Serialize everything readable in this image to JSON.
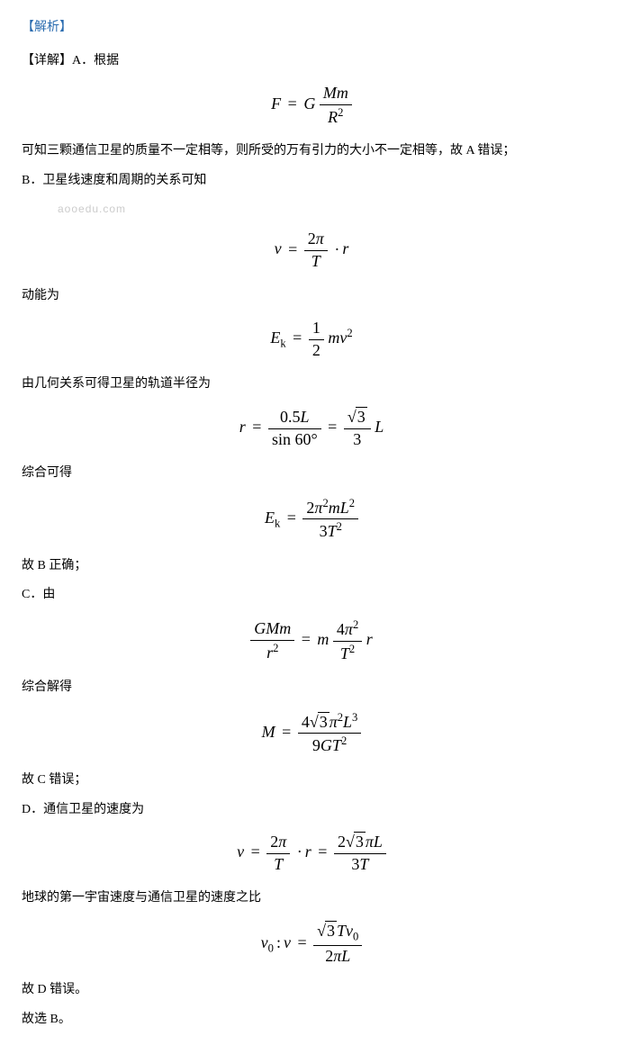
{
  "header": "【解析】",
  "p_detail": "【详解】A．根据",
  "p_A_concl": "可知三颗通信卫星的质量不一定相等，则所受的万有引力的大小不一定相等，故 A 错误；",
  "p_B_intro": "B．卫星线速度和周期的关系可知",
  "watermark": "aooedu.com",
  "p_Ek_intro": "动能为",
  "p_radius_intro": "由几何关系可得卫星的轨道半径为",
  "p_combine": "综合可得",
  "p_B_concl": "故 B 正确；",
  "p_C_intro": "C．由",
  "p_C_combine": "综合解得",
  "p_C_concl": "故 C 错误；",
  "p_D_intro": "D．通信卫星的速度为",
  "p_D_ratio_intro": "地球的第一宇宙速度与通信卫星的速度之比",
  "p_D_concl": "故 D 错误。",
  "p_final": "故选 B。",
  "eq1": {
    "lhs": "F",
    "num": "Mm",
    "den_base": "R",
    "den_exp": "2",
    "coef": "G"
  },
  "eq2": {
    "lhs": "v",
    "num_a": "2",
    "num_b": "π",
    "den": "T",
    "tail": "r"
  },
  "eq3": {
    "lhs_base": "E",
    "lhs_sub": "k",
    "num": "1",
    "den": "2",
    "tail_a": "m",
    "tail_b": "v",
    "tail_exp": "2"
  },
  "eq4": {
    "lhs": "r",
    "num1": "0.5L",
    "den1_fn": "sin",
    "den1_arg": "60°",
    "num2_rad": "3",
    "den2": "3",
    "tail": "L"
  },
  "eq5": {
    "lhs_base": "E",
    "lhs_sub": "k",
    "num_a": "2",
    "num_b": "π",
    "num_b_exp": "2",
    "num_c": "m",
    "num_d": "L",
    "num_d_exp": "2",
    "den_a": "3",
    "den_b": "T",
    "den_b_exp": "2"
  },
  "eq6": {
    "num1": "GMm",
    "den1_base": "r",
    "den1_exp": "2",
    "rhs_coef": "m",
    "num2_a": "4",
    "num2_b": "π",
    "num2_exp": "2",
    "den2_base": "T",
    "den2_exp": "2",
    "tail": "r"
  },
  "eq7": {
    "lhs": "M",
    "num_a": "4",
    "num_rad": "3",
    "num_b": "π",
    "num_b_exp": "2",
    "num_c": "L",
    "num_c_exp": "3",
    "den_a": "9",
    "den_b": "G",
    "den_c": "T",
    "den_c_exp": "2"
  },
  "eq8": {
    "lhs": "v",
    "num1_a": "2",
    "num1_b": "π",
    "den1": "T",
    "mid": "r",
    "num2_a": "2",
    "num2_rad": "3",
    "num2_b": "π",
    "num2_c": "L",
    "den2_a": "3",
    "den2_b": "T"
  },
  "eq9": {
    "lhs_a": "v",
    "lhs_a_sub": "0",
    "lhs_b": "v",
    "num_rad": "3",
    "num_a": "T",
    "num_b": "v",
    "num_b_sub": "0",
    "den_a": "2",
    "den_b": "π",
    "den_c": "L"
  }
}
